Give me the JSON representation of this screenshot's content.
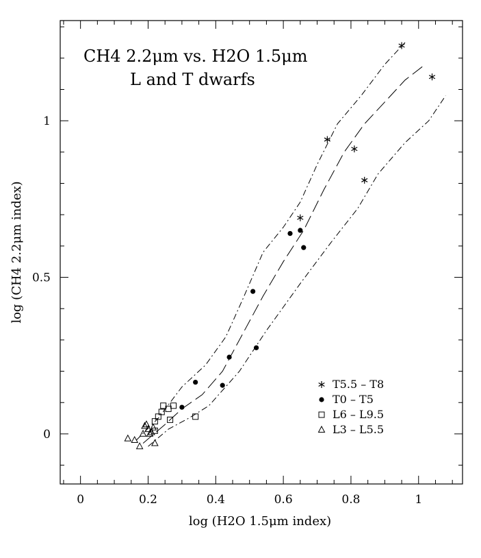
{
  "chart_data": {
    "type": "scatter",
    "title_line1": "CH4 2.2μm vs. H2O 1.5μm",
    "title_line2": "L and T dwarfs",
    "xlabel": "log (H2O 1.5μm index)",
    "ylabel": "log (CH4 2.2μm index)",
    "xlim": [
      -0.06,
      1.13
    ],
    "ylim": [
      -0.16,
      1.32
    ],
    "xticks_major": [
      0,
      0.2,
      0.4,
      0.6,
      0.8,
      1
    ],
    "xtick_labels": [
      "0",
      "0.2",
      "0.4",
      "0.6",
      "0.8",
      "1"
    ],
    "yticks_major": [
      0,
      0.5,
      1
    ],
    "ytick_labels": [
      "0",
      "0.5",
      "1"
    ],
    "grid": false,
    "legend_position": "lower-right",
    "series": [
      {
        "name": "T5.5 – T8",
        "marker": "asterisk",
        "points": [
          [
            0.65,
            0.69
          ],
          [
            0.73,
            0.94
          ],
          [
            0.81,
            0.91
          ],
          [
            0.84,
            0.81
          ],
          [
            0.95,
            1.24
          ],
          [
            1.04,
            1.14
          ]
        ]
      },
      {
        "name": "T0 – T5",
        "marker": "filled-circle",
        "points": [
          [
            0.3,
            0.085
          ],
          [
            0.34,
            0.165
          ],
          [
            0.42,
            0.155
          ],
          [
            0.44,
            0.245
          ],
          [
            0.51,
            0.455
          ],
          [
            0.52,
            0.275
          ],
          [
            0.62,
            0.64
          ],
          [
            0.65,
            0.65
          ],
          [
            0.66,
            0.595
          ]
        ]
      },
      {
        "name": "L6 – L9.5",
        "marker": "open-square",
        "points": [
          [
            0.22,
            0.04
          ],
          [
            0.22,
            0.01
          ],
          [
            0.23,
            0.055
          ],
          [
            0.24,
            0.07
          ],
          [
            0.245,
            0.09
          ],
          [
            0.26,
            0.08
          ],
          [
            0.265,
            0.045
          ],
          [
            0.275,
            0.09
          ],
          [
            0.34,
            0.055
          ]
        ]
      },
      {
        "name": "L3 – L5.5",
        "marker": "open-triangle",
        "points": [
          [
            0.14,
            -0.015
          ],
          [
            0.16,
            -0.02
          ],
          [
            0.175,
            -0.04
          ],
          [
            0.185,
            0.0
          ],
          [
            0.19,
            0.025
          ],
          [
            0.195,
            0.03
          ],
          [
            0.2,
            0.015
          ],
          [
            0.205,
            0.0
          ],
          [
            0.21,
            0.005
          ],
          [
            0.215,
            0.02
          ],
          [
            0.22,
            -0.03
          ]
        ]
      }
    ],
    "fit_lines": [
      {
        "style": "long-dash",
        "points": [
          [
            0.185,
            -0.03
          ],
          [
            0.25,
            0.03
          ],
          [
            0.3,
            0.08
          ],
          [
            0.36,
            0.125
          ],
          [
            0.42,
            0.2
          ],
          [
            0.48,
            0.32
          ],
          [
            0.54,
            0.44
          ],
          [
            0.6,
            0.55
          ],
          [
            0.66,
            0.65
          ],
          [
            0.72,
            0.78
          ],
          [
            0.78,
            0.9
          ],
          [
            0.84,
            0.99
          ],
          [
            0.9,
            1.06
          ],
          [
            0.96,
            1.13
          ],
          [
            1.02,
            1.18
          ]
        ]
      },
      {
        "style": "dash-dot",
        "points": [
          [
            0.165,
            -0.02
          ],
          [
            0.23,
            0.05
          ],
          [
            0.3,
            0.15
          ],
          [
            0.37,
            0.22
          ],
          [
            0.43,
            0.31
          ],
          [
            0.48,
            0.43
          ],
          [
            0.54,
            0.58
          ],
          [
            0.6,
            0.66
          ],
          [
            0.65,
            0.74
          ],
          [
            0.7,
            0.86
          ],
          [
            0.76,
            0.99
          ],
          [
            0.83,
            1.08
          ],
          [
            0.9,
            1.18
          ],
          [
            0.96,
            1.25
          ]
        ]
      },
      {
        "style": "dash-dot",
        "points": [
          [
            0.2,
            -0.04
          ],
          [
            0.26,
            0.015
          ],
          [
            0.32,
            0.05
          ],
          [
            0.38,
            0.09
          ],
          [
            0.47,
            0.2
          ],
          [
            0.55,
            0.33
          ],
          [
            0.65,
            0.48
          ],
          [
            0.74,
            0.61
          ],
          [
            0.82,
            0.72
          ],
          [
            0.88,
            0.83
          ],
          [
            0.96,
            0.93
          ],
          [
            1.03,
            1.0
          ],
          [
            1.08,
            1.08
          ]
        ]
      }
    ]
  }
}
